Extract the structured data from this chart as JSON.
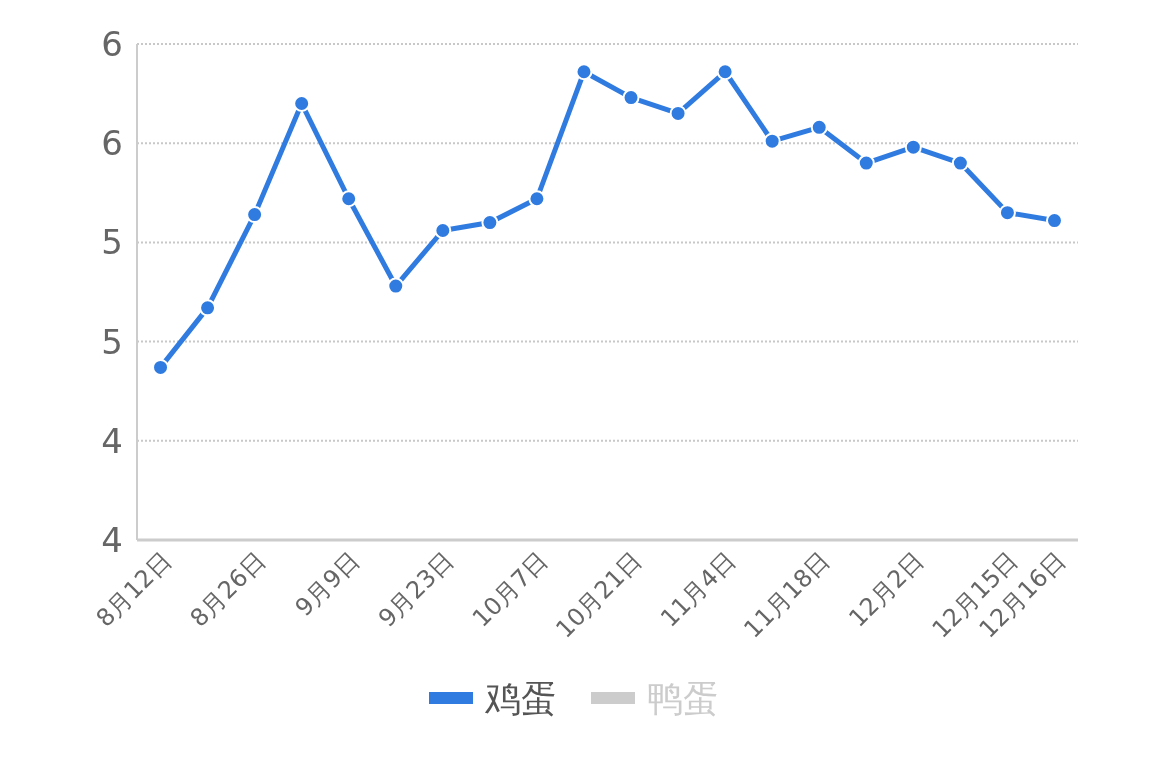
{
  "chart_data": {
    "type": "line",
    "categories": [
      "8月12日",
      null,
      "8月26日",
      null,
      "9月9日",
      null,
      "9月23日",
      null,
      "10月7日",
      null,
      "10月21日",
      null,
      "11月4日",
      null,
      "11月18日",
      null,
      "12月2日",
      null,
      "12月15日",
      "12月16日"
    ],
    "series": [
      {
        "name": "鸡蛋",
        "color": "#2f7be0",
        "values": [
          4.37,
          4.67,
          5.14,
          5.7,
          5.22,
          4.78,
          5.06,
          5.1,
          5.22,
          5.86,
          5.73,
          5.65,
          5.86,
          5.51,
          5.58,
          5.4,
          5.48,
          5.4,
          5.15,
          5.11
        ]
      },
      {
        "name": "鸭蛋",
        "color": "#cccccc",
        "values": [
          null,
          null,
          null,
          null,
          null,
          null,
          null,
          null,
          null,
          null,
          null,
          null,
          null,
          null,
          null,
          null,
          null,
          null,
          null,
          null
        ]
      }
    ],
    "ylim": [
      3.5,
      6.0
    ],
    "yticks": [
      {
        "value": 3.5,
        "label": "4"
      },
      {
        "value": 4.0,
        "label": "4"
      },
      {
        "value": 4.5,
        "label": "5"
      },
      {
        "value": 5.0,
        "label": "5"
      },
      {
        "value": 5.5,
        "label": "6"
      },
      {
        "value": 6.0,
        "label": "6"
      }
    ],
    "grid": "y",
    "legend": "bottom",
    "marker": "circle",
    "line_style": "solid"
  }
}
